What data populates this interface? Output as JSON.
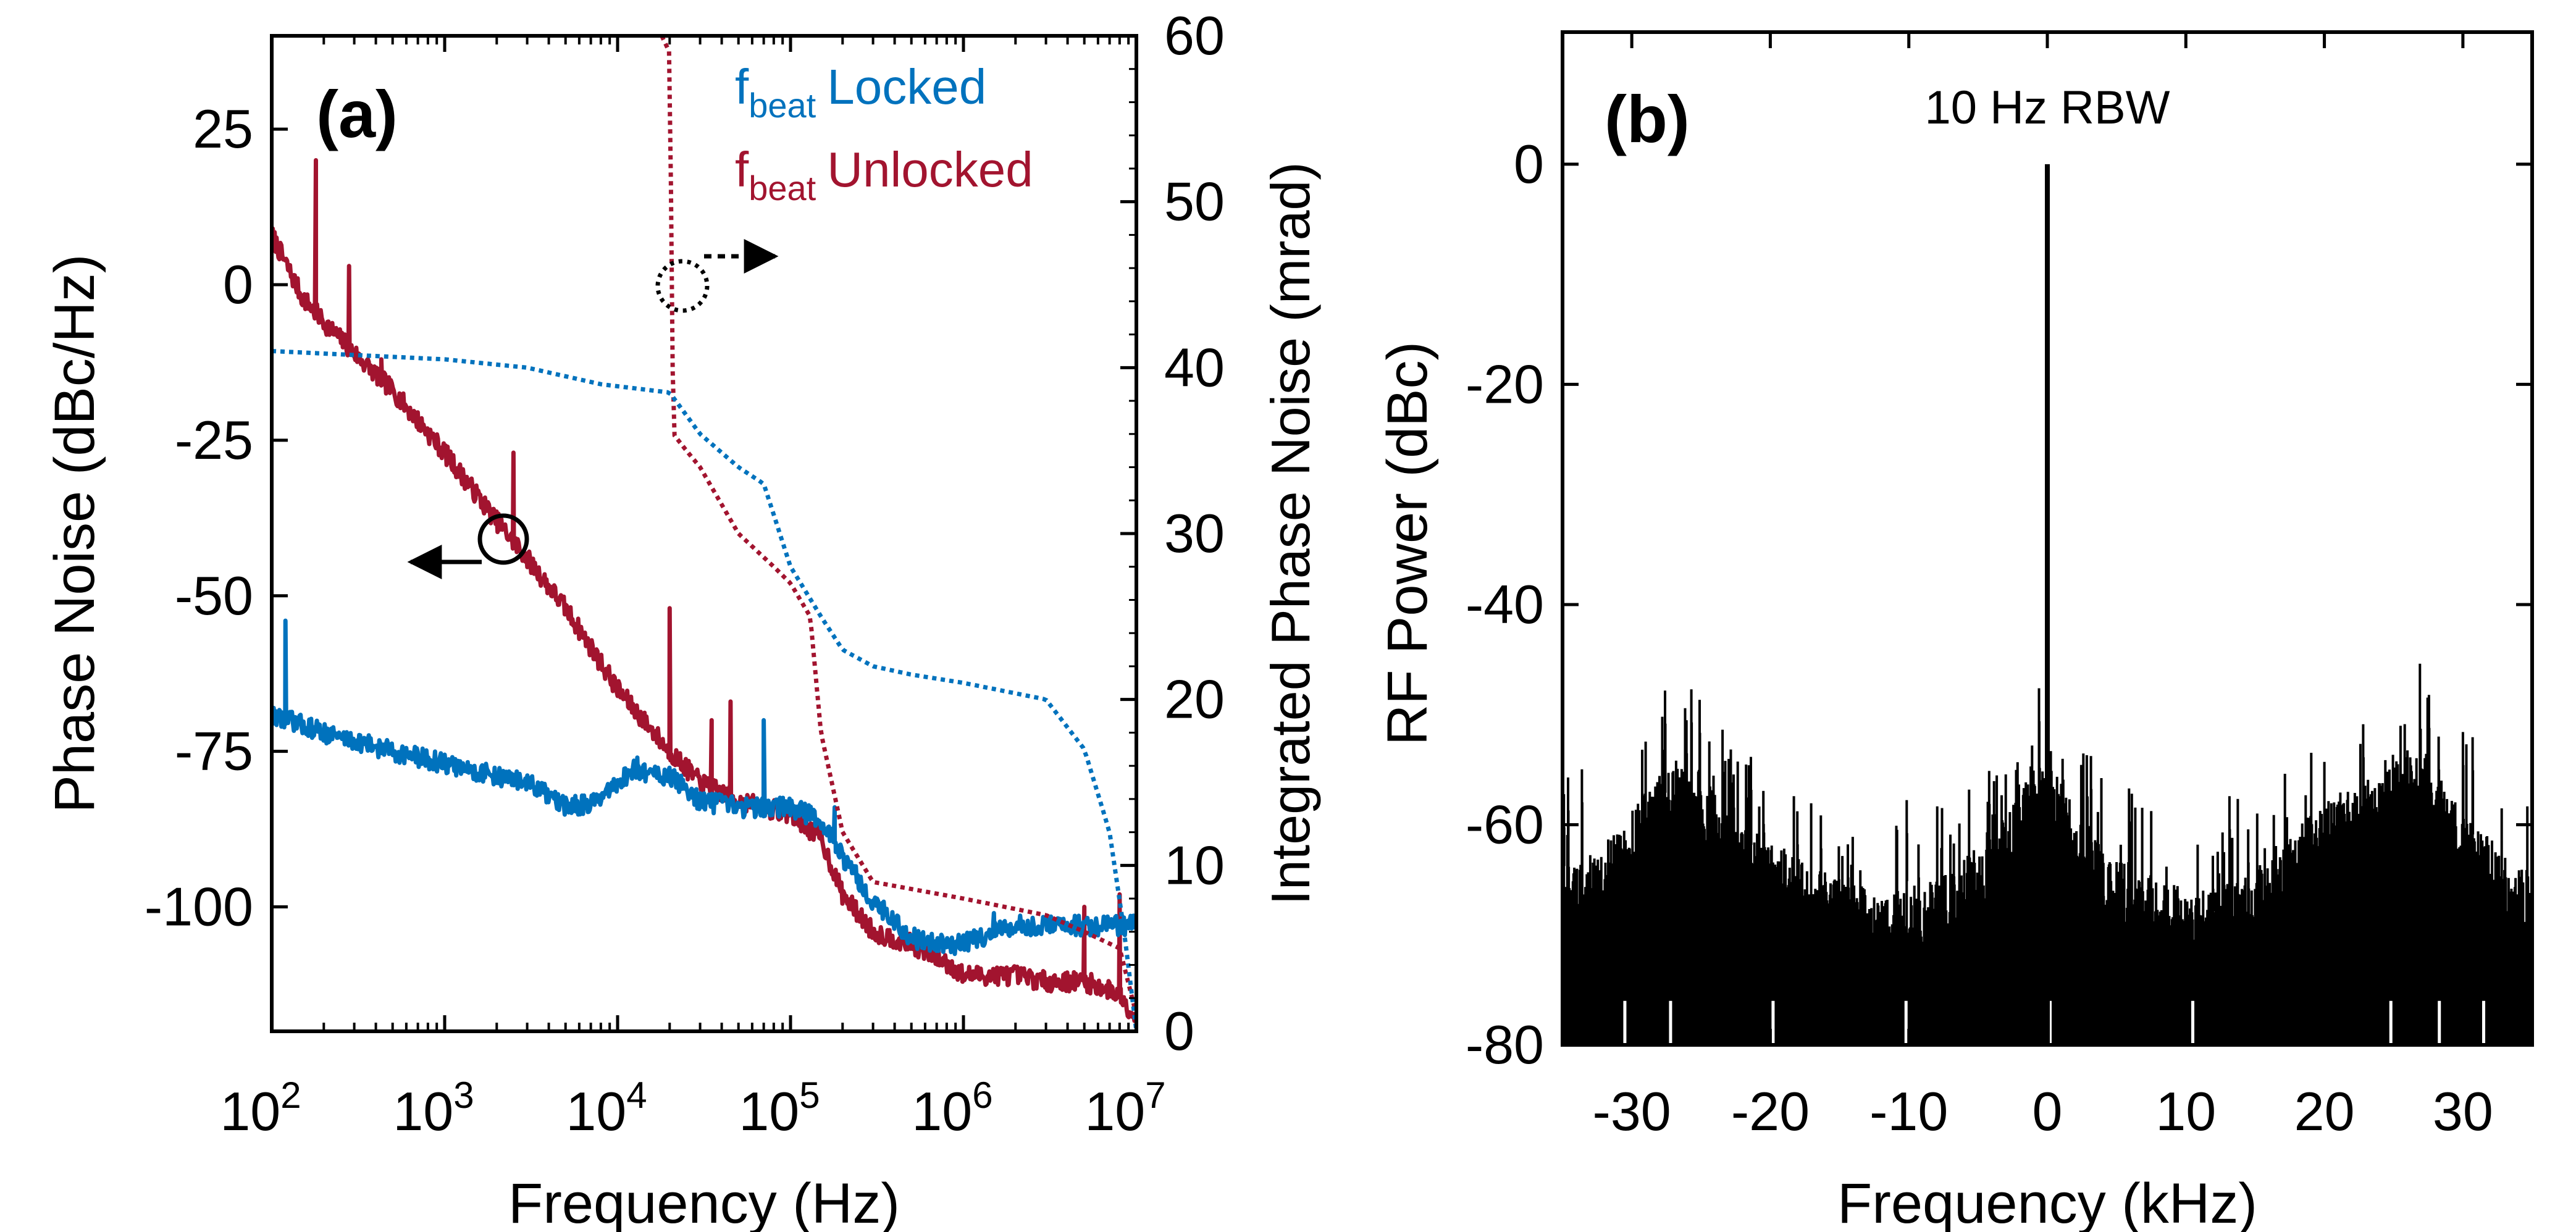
{
  "chart_data": [
    {
      "panel_label": "(a)",
      "type": "line",
      "x_scale": "log",
      "xlabel": "Frequency (Hz)",
      "xlim": [
        100,
        10000000
      ],
      "x_ticks": [
        {
          "base": "10",
          "exp": "2",
          "value": 100
        },
        {
          "base": "10",
          "exp": "3",
          "value": 1000
        },
        {
          "base": "10",
          "exp": "4",
          "value": 10000
        },
        {
          "base": "10",
          "exp": "5",
          "value": 100000
        },
        {
          "base": "10",
          "exp": "6",
          "value": 1000000
        },
        {
          "base": "10",
          "exp": "7",
          "value": 10000000
        }
      ],
      "ylabel_left": "Phase Noise (dBc/Hz)",
      "ylim_left": [
        -120,
        40
      ],
      "y_ticks_left": [
        "25",
        "0",
        "-25",
        "-50",
        "-75",
        "-100"
      ],
      "ylabel_right": "Integrated Phase Noise (mrad)",
      "ylim_right": [
        0,
        60
      ],
      "y_ticks_right": [
        "60",
        "50",
        "40",
        "30",
        "20",
        "10",
        "0"
      ],
      "legend": [
        {
          "main": "f",
          "sub": "beat",
          "text": "Locked",
          "color": "#0072BD"
        },
        {
          "main": "f",
          "sub": "beat",
          "text": "Unlocked",
          "color": "#A2142F"
        }
      ],
      "annotations": [
        "left-axis marker (circle + left arrow) on solid curves",
        "right-axis marker (dotted circle + right arrow) on dotted curves"
      ],
      "series": [
        {
          "name": "Unlocked phase noise",
          "axis": "left",
          "style": "solid",
          "color": "#A2142F",
          "points": [
            [
              100,
              8
            ],
            [
              150,
              -2
            ],
            [
              200,
              -6
            ],
            [
              300,
              -11
            ],
            [
              500,
              -17
            ],
            [
              1000,
              -27
            ],
            [
              2000,
              -38
            ],
            [
              3000,
              -44
            ],
            [
              5000,
              -52
            ],
            [
              10000,
              -65
            ],
            [
              20000,
              -75
            ],
            [
              30000,
              -80
            ],
            [
              50000,
              -83
            ],
            [
              100000,
              -85
            ],
            [
              150000,
              -89
            ],
            [
              200000,
              -98
            ],
            [
              300000,
              -104
            ],
            [
              500000,
              -106
            ],
            [
              800000,
              -109
            ],
            [
              1000000,
              -111
            ],
            [
              2000000,
              -111
            ],
            [
              3000000,
              -112
            ],
            [
              5000000,
              -112
            ],
            [
              8000000,
              -114
            ],
            [
              10000000,
              -118
            ]
          ],
          "spurs": [
            [
              180,
              20
            ],
            [
              280,
              3
            ],
            [
              430,
              -12
            ],
            [
              2500,
              -27
            ],
            [
              20000,
              -52
            ],
            [
              35000,
              -70
            ],
            [
              45000,
              -67
            ],
            [
              5000000,
              -100
            ],
            [
              8000000,
              -98
            ]
          ]
        },
        {
          "name": "Locked phase noise",
          "axis": "left",
          "style": "solid",
          "color": "#0072BD",
          "points": [
            [
              100,
              -69
            ],
            [
              200,
              -72
            ],
            [
              500,
              -75
            ],
            [
              1000,
              -77
            ],
            [
              2000,
              -79
            ],
            [
              3000,
              -80
            ],
            [
              5000,
              -84
            ],
            [
              8000,
              -83
            ],
            [
              12000,
              -78
            ],
            [
              20000,
              -79
            ],
            [
              30000,
              -83
            ],
            [
              50000,
              -84
            ],
            [
              100000,
              -84
            ],
            [
              150000,
              -86
            ],
            [
              200000,
              -92
            ],
            [
              300000,
              -99
            ],
            [
              500000,
              -105
            ],
            [
              800000,
              -106
            ],
            [
              1000000,
              -106
            ],
            [
              1500000,
              -104
            ],
            [
              2000000,
              -103
            ],
            [
              5000000,
              -103
            ],
            [
              10000000,
              -103
            ]
          ],
          "spurs": [
            [
              120,
              -54
            ],
            [
              13000,
              -76
            ],
            [
              70000,
              -70
            ],
            [
              180000,
              -84
            ],
            [
              1500000,
              -101
            ],
            [
              8000000,
              -104
            ]
          ]
        },
        {
          "name": "Unlocked integrated phase noise",
          "axis": "right",
          "style": "dotted",
          "color": "#A2142F",
          "points": [
            [
              18000,
              60
            ],
            [
              20000,
              59
            ],
            [
              20500,
              47
            ],
            [
              21000,
              36
            ],
            [
              25000,
              35
            ],
            [
              30000,
              34
            ],
            [
              50000,
              30
            ],
            [
              80000,
              28
            ],
            [
              100000,
              27
            ],
            [
              130000,
              25
            ],
            [
              150000,
              18
            ],
            [
              200000,
              12
            ],
            [
              300000,
              9
            ],
            [
              1000000,
              8
            ],
            [
              3000000,
              7
            ],
            [
              5000000,
              6
            ],
            [
              8000000,
              5
            ],
            [
              10000000,
              1
            ]
          ]
        },
        {
          "name": "Locked integrated phase noise",
          "axis": "right",
          "style": "dotted",
          "color": "#0072BD",
          "points": [
            [
              100,
              41
            ],
            [
              1000,
              40.5
            ],
            [
              3000,
              40
            ],
            [
              8000,
              39
            ],
            [
              20000,
              38.5
            ],
            [
              30000,
              36
            ],
            [
              50000,
              34
            ],
            [
              70000,
              33
            ],
            [
              100000,
              28
            ],
            [
              150000,
              25
            ],
            [
              200000,
              23
            ],
            [
              300000,
              22
            ],
            [
              500000,
              21.5
            ],
            [
              1000000,
              21
            ],
            [
              3000000,
              20
            ],
            [
              5000000,
              17
            ],
            [
              7000000,
              12
            ],
            [
              8500000,
              6
            ],
            [
              10000000,
              0
            ]
          ]
        }
      ]
    },
    {
      "panel_label": "(b)",
      "type": "line",
      "title": "10 Hz RBW",
      "xlabel": "Frequency (kHz)",
      "ylabel": "RF Power (dBc)",
      "xlim": [
        -35,
        35
      ],
      "ylim": [
        -80,
        12
      ],
      "x_ticks": [
        "-30",
        "-20",
        "-10",
        "0",
        "10",
        "20",
        "30"
      ],
      "y_ticks": [
        "0",
        "-20",
        "-40",
        "-60",
        "-80"
      ],
      "series": [
        {
          "name": "RF spectrum",
          "color": "#000000",
          "carrier": [
            0,
            0
          ],
          "envelope_top": [
            [
              -35,
              -67
            ],
            [
              -31,
              -63
            ],
            [
              -29,
              -60
            ],
            [
              -27,
              -57
            ],
            [
              -25,
              -58
            ],
            [
              -23,
              -62
            ],
            [
              -20,
              -64
            ],
            [
              -18,
              -66
            ],
            [
              -15,
              -68
            ],
            [
              -12,
              -69
            ],
            [
              -8,
              -68
            ],
            [
              -4,
              -64
            ],
            [
              -2,
              -60
            ],
            [
              -1,
              -57
            ],
            [
              0,
              -57
            ],
            [
              1,
              -58
            ],
            [
              2,
              -61
            ],
            [
              4,
              -65
            ],
            [
              8,
              -68
            ],
            [
              12,
              -69
            ],
            [
              15,
              -67
            ],
            [
              18,
              -63
            ],
            [
              21,
              -60
            ],
            [
              23,
              -59
            ],
            [
              25,
              -57
            ],
            [
              27,
              -56
            ],
            [
              29,
              -60
            ],
            [
              31,
              -63
            ],
            [
              35,
              -68
            ]
          ],
          "floor": -80
        }
      ]
    }
  ]
}
